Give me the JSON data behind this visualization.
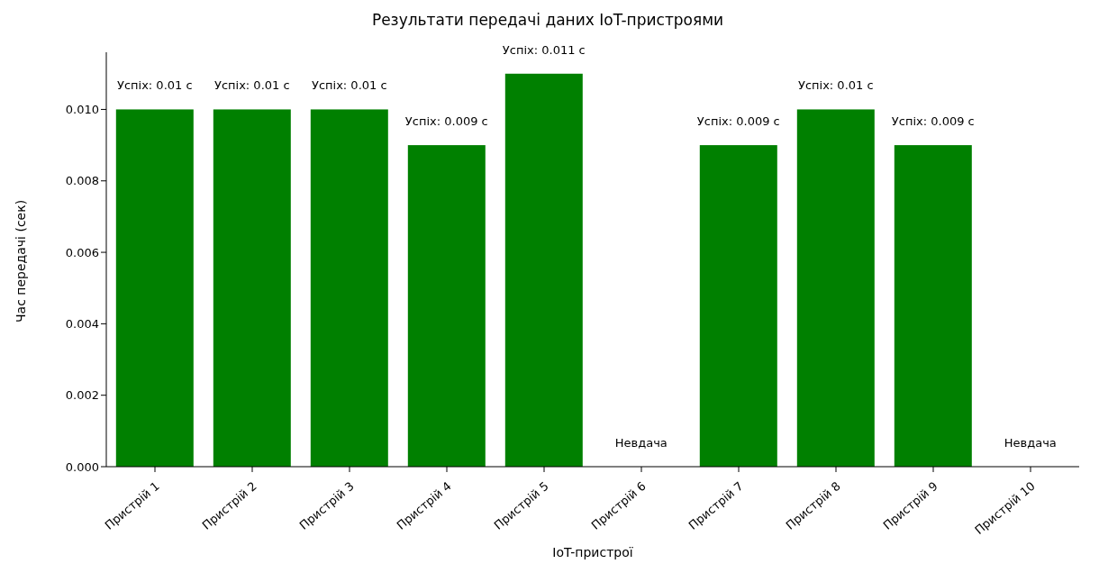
{
  "chart_data": {
    "type": "bar",
    "title": "Результати передачі даних IoT-пристроями",
    "xlabel": "IoT-пристрої",
    "ylabel": "Час передачі (сек)",
    "categories": [
      "Пристрій 1",
      "Пристрій 2",
      "Пристрій 3",
      "Пристрій 4",
      "Пристрій 5",
      "Пристрій 6",
      "Пристрій 7",
      "Пристрій 8",
      "Пристрій 9",
      "Пристрій 10"
    ],
    "values": [
      0.01,
      0.01,
      0.01,
      0.009,
      0.011,
      0,
      0.009,
      0.01,
      0.009,
      0
    ],
    "value_labels": [
      "Успіх: 0.01 с",
      "Успіх: 0.01 с",
      "Успіх: 0.01 с",
      "Успіх: 0.009 с",
      "Успіх: 0.011 с",
      "Невдача",
      "Успіх: 0.009 с",
      "Успіх: 0.01 с",
      "Успіх: 0.009 с",
      "Невдача"
    ],
    "color": "#008000",
    "ylim": [
      0,
      0.0116
    ],
    "yticks": [
      {
        "value": 0,
        "label": "0.000"
      },
      {
        "value": 0.002,
        "label": "0.002"
      },
      {
        "value": 0.004,
        "label": "0.004"
      },
      {
        "value": 0.006,
        "label": "0.006"
      },
      {
        "value": 0.008,
        "label": "0.008"
      },
      {
        "value": 0.01,
        "label": "0.010"
      }
    ],
    "grid": false,
    "legend": false
  }
}
